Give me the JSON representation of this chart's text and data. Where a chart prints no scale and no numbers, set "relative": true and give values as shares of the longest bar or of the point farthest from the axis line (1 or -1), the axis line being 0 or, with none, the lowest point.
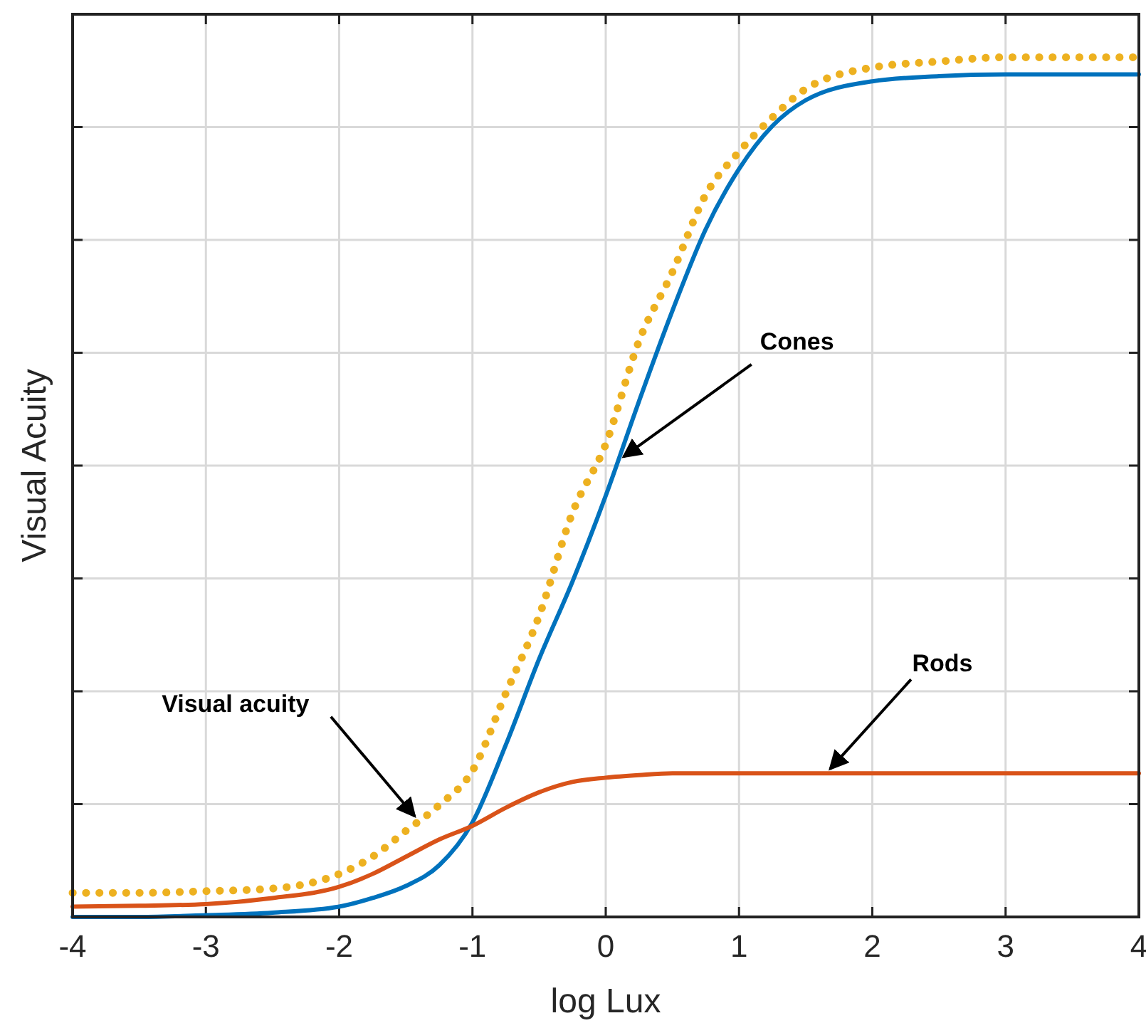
{
  "chart_data": {
    "type": "line",
    "relative": true,
    "xlabel": "log Lux",
    "ylabel": "Visual Acuity",
    "xlim": [
      -4,
      4
    ],
    "xticks": [
      -4,
      -3,
      -2,
      -1,
      0,
      1,
      2,
      3,
      4
    ],
    "grid": true,
    "tick_labels": "x",
    "x": [
      -4,
      -3.5,
      -3,
      -2.5,
      -2,
      -1.75,
      -1.5,
      -1.25,
      -1,
      -0.75,
      -0.5,
      -0.25,
      0,
      0.25,
      0.5,
      0.75,
      1,
      1.25,
      1.5,
      2,
      2.5,
      3,
      3.5,
      4
    ],
    "series": [
      {
        "color": "#0072bd",
        "line_style": "solid",
        "values": [
          0,
          0,
          0.002,
          0.005,
          0.012,
          0.022,
          0.036,
          0.06,
          0.11,
          0.2,
          0.3,
          0.39,
          0.49,
          0.6,
          0.705,
          0.8,
          0.87,
          0.92,
          0.95,
          0.972,
          0.978,
          0.98,
          0.98,
          0.98
        ]
      },
      {
        "color": "#d95319",
        "line_style": "solid",
        "values": [
          0.012,
          0.013,
          0.015,
          0.022,
          0.035,
          0.05,
          0.07,
          0.09,
          0.106,
          0.127,
          0.145,
          0.157,
          0.162,
          0.165,
          0.167,
          0.167,
          0.167,
          0.167,
          0.167,
          0.167,
          0.167,
          0.167,
          0.167,
          0.167
        ]
      },
      {
        "color": "#edb120",
        "line_style": "dotted",
        "values": [
          0.028,
          0.028,
          0.03,
          0.033,
          0.05,
          0.07,
          0.1,
          0.13,
          0.17,
          0.26,
          0.35,
          0.47,
          0.55,
          0.67,
          0.75,
          0.84,
          0.89,
          0.93,
          0.963,
          0.988,
          0.995,
          1,
          1,
          1
        ]
      }
    ],
    "annotations": [
      {
        "text": "Cones",
        "x": 0.1,
        "y": 0.53
      },
      {
        "text": "Rods",
        "x": 1.65,
        "y": 0.167
      },
      {
        "text": "Visual acuity",
        "x": -1.4,
        "y": 0.112
      }
    ]
  }
}
